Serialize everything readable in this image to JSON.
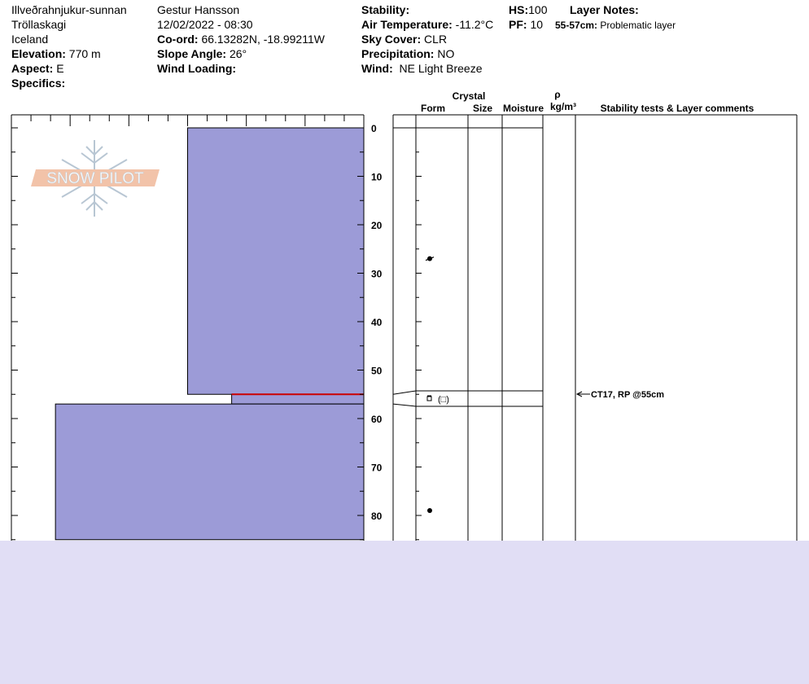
{
  "header": {
    "location": "Illveðrahnjukur-sunnan",
    "region": "Tröllaskagi",
    "country": "Iceland",
    "elevation_label": "Elevation:",
    "elevation_value": "770 m",
    "aspect_label": "Aspect:",
    "aspect_value": "E",
    "specifics_label": "Specifics:",
    "observer": "Gestur Hansson",
    "datetime": "12/02/2022 - 08:30",
    "coord_label": "Co-ord:",
    "coord_value": "66.13282N, -18.99211W",
    "slope_label": "Slope Angle:",
    "slope_value": "26°",
    "wind_loading_label": "Wind Loading:",
    "stability_label": "Stability:",
    "air_temp_label": "Air Temperature:",
    "air_temp_value": "-11.2°C",
    "sky_label": "Sky Cover:",
    "sky_value": "CLR",
    "precip_label": "Precipitation:",
    "precip_value": "NO",
    "wind_label": "Wind:",
    "wind_value": "NE Light Breeze",
    "hs_label": "HS:",
    "hs_value": "100",
    "pf_label": "PF:",
    "pf_value": "10",
    "layer_notes_label": "Layer Notes:",
    "layer_note_depth": "55-57cm:",
    "layer_note_text": "Problematic layer"
  },
  "logo_text": "SNOW PILOT",
  "columns": {
    "crystal": "Crystal",
    "form": "Form",
    "size": "Size",
    "moisture": "Moisture",
    "rho": "ρ",
    "density_unit": "kg/m³",
    "stability": "Stability tests & Layer comments"
  },
  "chart_data": {
    "type": "bar",
    "orientation": "horizontal",
    "y_axis_label": "",
    "ylim": [
      0,
      85
    ],
    "y_ticks": [
      0,
      10,
      20,
      30,
      40,
      50,
      60,
      70,
      80
    ],
    "hardness_levels": 4,
    "layers": [
      {
        "top": 0,
        "bottom": 55,
        "hardness": 2,
        "color": "#9c9bd7"
      },
      {
        "top": 55,
        "bottom": 57,
        "hardness": 1.5,
        "color": "#9c9bd7",
        "problem": true
      },
      {
        "top": 57,
        "bottom": 85,
        "hardness": 3.5,
        "color": "#9c9bd7"
      }
    ],
    "crystal_forms": [
      {
        "depth": 27,
        "form": "decomposing-particles"
      },
      {
        "depth": 55.5,
        "form": "faceted-rounded",
        "label": "(□)"
      },
      {
        "depth": 79,
        "form": "rounded-grains"
      }
    ],
    "layer_boundaries": [
      0,
      55,
      57
    ],
    "stability_tests": [
      {
        "depth": 55,
        "text": "CT17, RP @55cm"
      }
    ],
    "problem_color": "#cc0000"
  }
}
